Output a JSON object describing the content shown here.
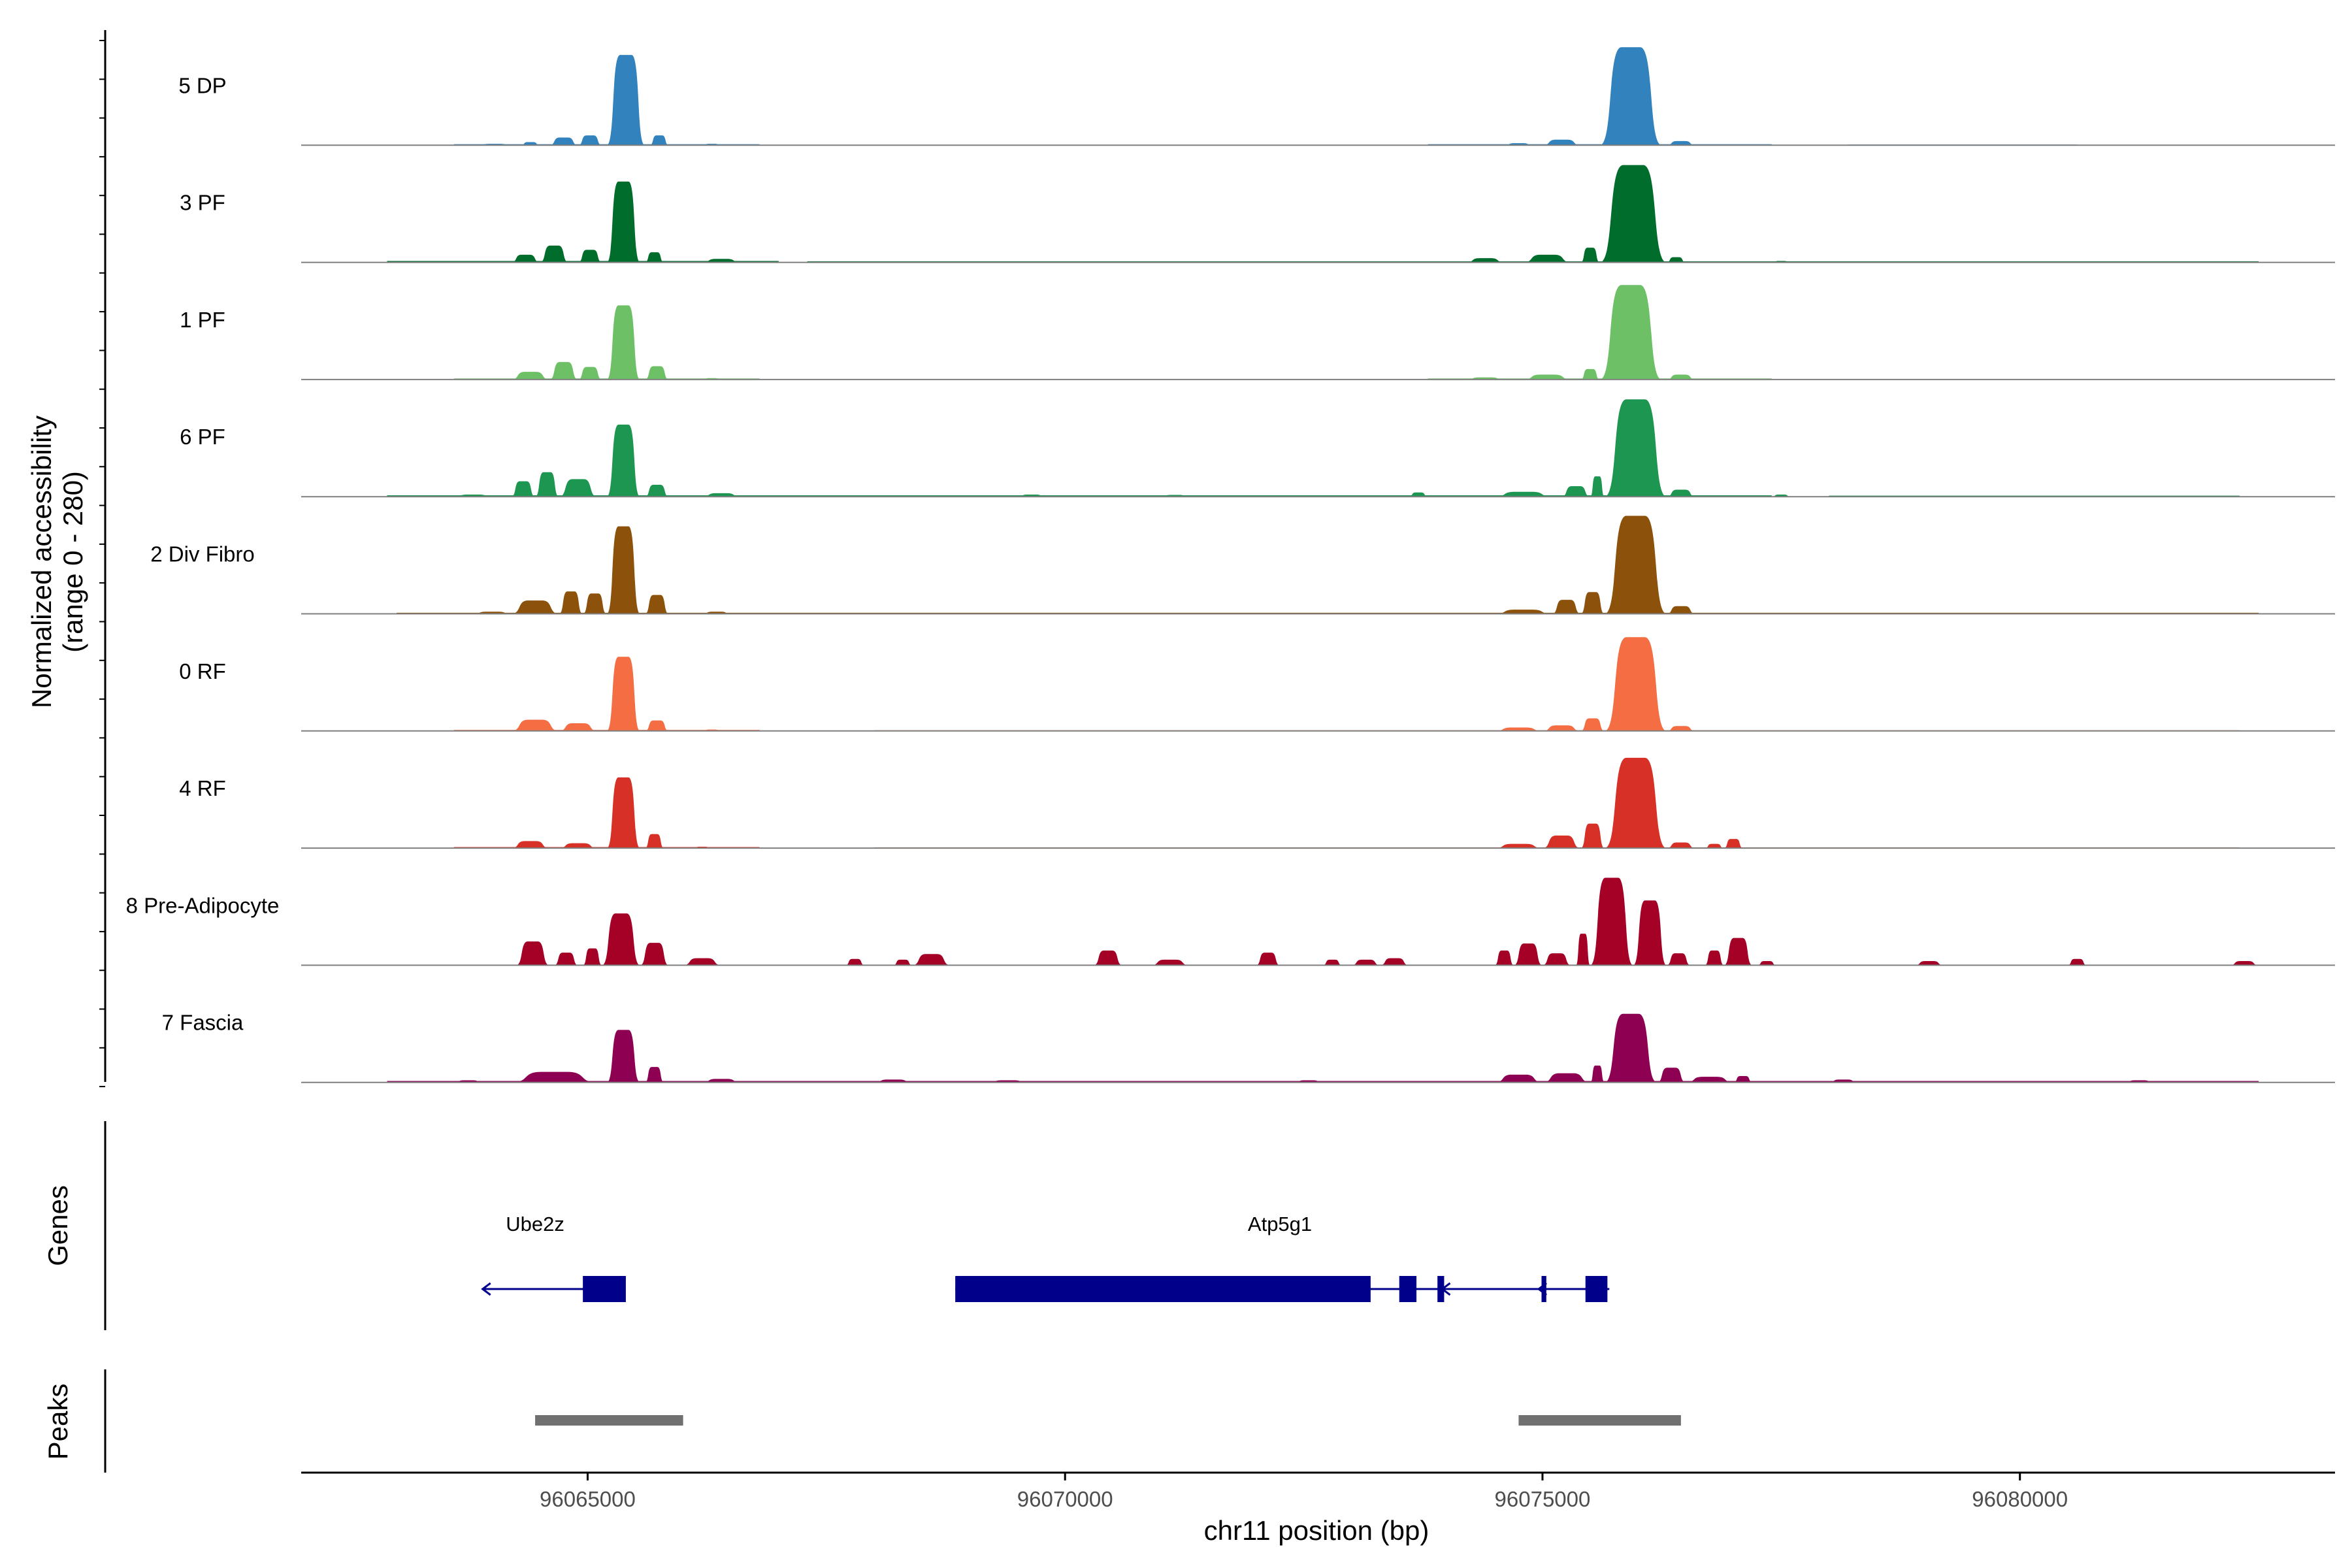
{
  "chart_data": {
    "type": "area",
    "title": "",
    "ylabel_line1": "Normalized accessibility",
    "ylabel_line2": "(range 0 - 280)",
    "ylim": [
      0,
      280
    ],
    "xlabel": "chr11 position (bp)",
    "xlim": [
      96062000,
      96083300
    ],
    "xticks": [
      96065000,
      96070000,
      96075000,
      96080000
    ],
    "xtick_labels": [
      "96065000",
      "96070000",
      "96075000",
      "96080000"
    ],
    "tracks": [
      {
        "name": "5 DP",
        "color": "#3182BD",
        "peaks": [
          [
            96063850,
            96064200,
            4
          ],
          [
            96064300,
            96064500,
            9
          ],
          [
            96064600,
            96064900,
            22
          ],
          [
            96064900,
            96065150,
            28
          ],
          [
            96065200,
            96065600,
            258
          ],
          [
            96065650,
            96065850,
            28
          ],
          [
            96066200,
            96066400,
            4
          ],
          [
            96074600,
            96074900,
            6
          ],
          [
            96075000,
            96075400,
            16
          ],
          [
            96075600,
            96076250,
            280
          ],
          [
            96076300,
            96076600,
            12
          ]
        ],
        "floor": [
          [
            96063600,
            96066800,
            3
          ],
          [
            96073800,
            96077400,
            3
          ],
          [
            96078200,
            96080600,
            2
          ]
        ]
      },
      {
        "name": "3 PF",
        "color": "#006D2C",
        "peaks": [
          [
            96064200,
            96064500,
            22
          ],
          [
            96064500,
            96064800,
            48
          ],
          [
            96064900,
            96065150,
            36
          ],
          [
            96065200,
            96065550,
            231
          ],
          [
            96065600,
            96065800,
            29
          ],
          [
            96066200,
            96066600,
            10
          ],
          [
            96074200,
            96074600,
            12
          ],
          [
            96074800,
            96075300,
            22
          ],
          [
            96075400,
            96075600,
            42
          ],
          [
            96075600,
            96076300,
            278
          ],
          [
            96076300,
            96076500,
            15
          ],
          [
            96077400,
            96077600,
            4
          ]
        ],
        "floor": [
          [
            96062900,
            96067000,
            4
          ],
          [
            96067300,
            96082500,
            3
          ]
        ]
      },
      {
        "name": "1 PF",
        "color": "#6DC066",
        "peaks": [
          [
            96064200,
            96064600,
            22
          ],
          [
            96064600,
            96064900,
            50
          ],
          [
            96064900,
            96065150,
            36
          ],
          [
            96065200,
            96065550,
            212
          ],
          [
            96065600,
            96065850,
            38
          ],
          [
            96066200,
            96066400,
            4
          ],
          [
            96074200,
            96074600,
            6
          ],
          [
            96074800,
            96075300,
            14
          ],
          [
            96075400,
            96075600,
            30
          ],
          [
            96075600,
            96076250,
            270
          ],
          [
            96076300,
            96076600,
            14
          ]
        ],
        "floor": [
          [
            96063600,
            96066800,
            3
          ],
          [
            96073800,
            96077400,
            3
          ]
        ]
      },
      {
        "name": "6 PF",
        "color": "#1D9651",
        "peaks": [
          [
            96063600,
            96064000,
            6
          ],
          [
            96064200,
            96064450,
            44
          ],
          [
            96064450,
            96064700,
            70
          ],
          [
            96064700,
            96065100,
            50
          ],
          [
            96065200,
            96065550,
            206
          ],
          [
            96065600,
            96065850,
            34
          ],
          [
            96066200,
            96066600,
            10
          ],
          [
            96069500,
            96069800,
            6
          ],
          [
            96071000,
            96071300,
            5
          ],
          [
            96073600,
            96073800,
            12
          ],
          [
            96074500,
            96075100,
            14
          ],
          [
            96075200,
            96075500,
            30
          ],
          [
            96075500,
            96075650,
            58
          ],
          [
            96075650,
            96076300,
            278
          ],
          [
            96076300,
            96076600,
            20
          ],
          [
            96077400,
            96077600,
            6
          ]
        ],
        "floor": [
          [
            96062900,
            96077400,
            4
          ],
          [
            96078000,
            96082300,
            3
          ]
        ]
      },
      {
        "name": "2 Div Fibro",
        "color": "#8C510A",
        "peaks": [
          [
            96063800,
            96064200,
            6
          ],
          [
            96064200,
            96064700,
            38
          ],
          [
            96064700,
            96064950,
            64
          ],
          [
            96064950,
            96065200,
            58
          ],
          [
            96065200,
            96065550,
            250
          ],
          [
            96065600,
            96065850,
            54
          ],
          [
            96066200,
            96066500,
            6
          ],
          [
            96074500,
            96075100,
            12
          ],
          [
            96075100,
            96075400,
            40
          ],
          [
            96075400,
            96075650,
            62
          ],
          [
            96075650,
            96076300,
            280
          ],
          [
            96076300,
            96076600,
            22
          ]
        ],
        "floor": [
          [
            96063000,
            96082500,
            3
          ]
        ]
      },
      {
        "name": "0 RF",
        "color": "#F46D43",
        "peaks": [
          [
            96064200,
            96064700,
            32
          ],
          [
            96064700,
            96065100,
            22
          ],
          [
            96065200,
            96065550,
            212
          ],
          [
            96065600,
            96065850,
            30
          ],
          [
            96066200,
            96066400,
            4
          ],
          [
            96074500,
            96075000,
            10
          ],
          [
            96075000,
            96075400,
            16
          ],
          [
            96075400,
            96075650,
            36
          ],
          [
            96075650,
            96076300,
            268
          ],
          [
            96076300,
            96076600,
            14
          ]
        ],
        "floor": [
          [
            96063600,
            96066800,
            3
          ],
          [
            96068000,
            96082300,
            2
          ]
        ]
      },
      {
        "name": "4 RF",
        "color": "#D73027",
        "peaks": [
          [
            96064200,
            96064600,
            20
          ],
          [
            96064700,
            96065100,
            14
          ],
          [
            96065200,
            96065550,
            202
          ],
          [
            96065600,
            96065800,
            40
          ],
          [
            96066100,
            96066300,
            4
          ],
          [
            96074500,
            96075000,
            12
          ],
          [
            96075000,
            96075400,
            36
          ],
          [
            96075400,
            96075650,
            70
          ],
          [
            96075650,
            96076300,
            258
          ],
          [
            96076300,
            96076600,
            16
          ],
          [
            96076700,
            96076900,
            12
          ],
          [
            96076900,
            96077100,
            26
          ]
        ],
        "floor": [
          [
            96063600,
            96066800,
            3
          ],
          [
            96068000,
            96082300,
            2
          ]
        ]
      },
      {
        "name": "8 Pre-Adipocyte",
        "color": "#A50026",
        "peaks": [
          [
            96064250,
            96064600,
            68
          ],
          [
            96064650,
            96064900,
            36
          ],
          [
            96064950,
            96065150,
            48
          ],
          [
            96065150,
            96065550,
            148
          ],
          [
            96065550,
            96065850,
            64
          ],
          [
            96066000,
            96066400,
            20
          ],
          [
            96067700,
            96067900,
            18
          ],
          [
            96068200,
            96068400,
            16
          ],
          [
            96068400,
            96068800,
            32
          ],
          [
            96070300,
            96070600,
            42
          ],
          [
            96070900,
            96071300,
            16
          ],
          [
            96072000,
            96072250,
            36
          ],
          [
            96072700,
            96072900,
            16
          ],
          [
            96073000,
            96073300,
            16
          ],
          [
            96073300,
            96073600,
            20
          ],
          [
            96074500,
            96074700,
            42
          ],
          [
            96074700,
            96075000,
            62
          ],
          [
            96075000,
            96075300,
            34
          ],
          [
            96075350,
            96075500,
            90
          ],
          [
            96075500,
            96075950,
            250
          ],
          [
            96075950,
            96076300,
            185
          ],
          [
            96076300,
            96076550,
            34
          ],
          [
            96076700,
            96076900,
            42
          ],
          [
            96076900,
            96077200,
            78
          ],
          [
            96077250,
            96077450,
            12
          ],
          [
            96078900,
            96079200,
            12
          ],
          [
            96080500,
            96080700,
            18
          ],
          [
            96082200,
            96082500,
            12
          ]
        ],
        "floor": []
      },
      {
        "name": "7 Fascia",
        "color": "#8E0152",
        "peaks": [
          [
            96063600,
            96063900,
            6
          ],
          [
            96064200,
            96065100,
            30
          ],
          [
            96065200,
            96065550,
            150
          ],
          [
            96065600,
            96065800,
            44
          ],
          [
            96066200,
            96066600,
            10
          ],
          [
            96068000,
            96068400,
            8
          ],
          [
            96069200,
            96069600,
            6
          ],
          [
            96072400,
            96072700,
            6
          ],
          [
            96074500,
            96075000,
            22
          ],
          [
            96075000,
            96075500,
            26
          ],
          [
            96075500,
            96075650,
            48
          ],
          [
            96075650,
            96076200,
            196
          ],
          [
            96076200,
            96076500,
            42
          ],
          [
            96076500,
            96077000,
            16
          ],
          [
            96077000,
            96077200,
            18
          ],
          [
            96078000,
            96078300,
            8
          ],
          [
            96081100,
            96081400,
            6
          ]
        ],
        "floor": [
          [
            96062900,
            96082500,
            4
          ]
        ]
      }
    ],
    "gene_track": {
      "title": "Genes",
      "color": "#00008B",
      "genes": [
        {
          "name": "Ube2z",
          "label_pos": 96064450,
          "line": [
            96063900,
            96065000
          ],
          "exons": [
            [
              96064950,
              96065400
            ]
          ],
          "arrow_positions": [
            96063900,
            96064950
          ]
        },
        {
          "name": "Atp5g1",
          "label_pos": 96072250,
          "line": [
            96068850,
            96075700
          ],
          "exons": [
            [
              96068850,
              96073200
            ],
            [
              96073500,
              96073680
            ],
            [
              96073900,
              96073970
            ],
            [
              96074990,
              96075040
            ],
            [
              96075450,
              96075680
            ]
          ],
          "arrow_positions": [
            96073950,
            96074960
          ]
        }
      ]
    },
    "peak_track": {
      "title": "Peaks",
      "color": "#707070",
      "regions": [
        [
          96064450,
          96066000
        ],
        [
          96074750,
          96076450
        ]
      ]
    }
  }
}
